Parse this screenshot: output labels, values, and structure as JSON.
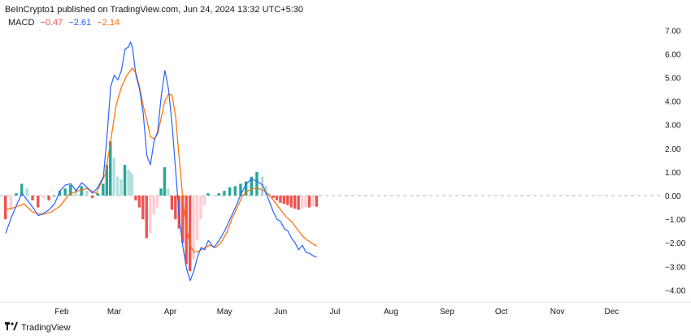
{
  "header": {
    "published_text": "BeInCrypto1 published on TradingView.com, Jun 24, 2024 13:32 UTC+5:30"
  },
  "legend": {
    "name": "MACD",
    "histogram_value": "−0.47",
    "macd_value": "−2.61",
    "signal_value": "−2.14"
  },
  "colors": {
    "macd_line": "#2962ff",
    "signal_line": "#ff6d00",
    "hist_pos_strong": "#26a69a",
    "hist_pos_weak": "#b2dfdb",
    "hist_neg_strong": "#ef5350",
    "hist_neg_weak": "#ffcdd2",
    "zero_line": "#b2b5be",
    "axis_text": "#131722"
  },
  "footer": {
    "brand": "TradingView",
    "logo_icon": "tradingview-logo-icon"
  },
  "chart_data": {
    "type": "line",
    "title": "",
    "xlabel": "",
    "ylabel": "",
    "ylim": [
      -4.25,
      7.6
    ],
    "grid": false,
    "legend_placement": "top-left",
    "x_tick_labels": [
      "Feb",
      "Mar",
      "Apr",
      "May",
      "Jun",
      "Jul",
      "Aug",
      "Sep",
      "Oct",
      "Nov",
      "Dec"
    ],
    "x_tick_positions_days": [
      31,
      60,
      91,
      121,
      152,
      182,
      213,
      244,
      274,
      305,
      335
    ],
    "y_ticks": [
      "7.00",
      "6.00",
      "5.00",
      "4.00",
      "3.00",
      "2.00",
      "1.00",
      "0.00",
      "−1.00",
      "−2.00",
      "−3.00",
      "−4.00"
    ],
    "y_tick_values": [
      7,
      6,
      5,
      4,
      3,
      2,
      1,
      0,
      -1,
      -2,
      -3,
      -4
    ],
    "series": [
      {
        "name": "MACD",
        "x": [
          0,
          3,
          6,
          9,
          12,
          15,
          18,
          21,
          24,
          27,
          30,
          33,
          36,
          39,
          42,
          45,
          48,
          51,
          54,
          56,
          58,
          60,
          62,
          64,
          66,
          68,
          69,
          70,
          72,
          74,
          76,
          78,
          80,
          82,
          84,
          86,
          88,
          90,
          92,
          94,
          96,
          98,
          100,
          102,
          104,
          106,
          108,
          110,
          112,
          115,
          118,
          121,
          124,
          127,
          130,
          133,
          136,
          139,
          142,
          144,
          146,
          148,
          150,
          152,
          154,
          156,
          158,
          160,
          162,
          164,
          166,
          168,
          170,
          172
        ],
        "values": [
          -1.6,
          -0.95,
          -0.4,
          0.1,
          -0.2,
          -0.5,
          -0.85,
          -0.75,
          -0.6,
          -0.35,
          0.2,
          0.45,
          0.5,
          0.2,
          0.55,
          0.35,
          0.1,
          0.35,
          0.8,
          2.5,
          4.6,
          5.1,
          4.9,
          5.3,
          6.2,
          6.3,
          6.5,
          6.3,
          5.1,
          4.5,
          3.5,
          1.7,
          1.3,
          2.3,
          2.7,
          4.2,
          5.3,
          4.5,
          3.0,
          1.0,
          -1.0,
          -2.2,
          -3.1,
          -3.6,
          -3.2,
          -2.6,
          -2.2,
          -2.3,
          -1.9,
          -2.2,
          -1.9,
          -1.5,
          -1.0,
          -0.5,
          0.05,
          0.5,
          0.7,
          0.6,
          0.45,
          0.1,
          -0.3,
          -0.7,
          -1.0,
          -1.1,
          -1.4,
          -1.5,
          -1.8,
          -2.0,
          -2.3,
          -2.1,
          -2.4,
          -2.45,
          -2.55,
          -2.61
        ]
      },
      {
        "name": "Signal",
        "x": [
          0,
          5,
          10,
          15,
          20,
          25,
          30,
          35,
          40,
          45,
          50,
          55,
          58,
          61,
          64,
          67,
          70,
          72,
          74,
          76,
          78,
          80,
          82,
          84,
          86,
          88,
          90,
          92,
          94,
          96,
          98,
          100,
          102,
          104,
          107,
          110,
          113,
          116,
          119,
          122,
          125,
          128,
          131,
          134,
          137,
          140,
          143,
          146,
          149,
          152,
          155,
          158,
          161,
          164,
          167,
          170,
          172
        ],
        "values": [
          -0.6,
          -0.5,
          -0.35,
          -0.7,
          -0.8,
          -0.7,
          -0.45,
          0.05,
          0.2,
          0.3,
          0.1,
          0.9,
          2.3,
          3.8,
          4.6,
          5.1,
          5.4,
          5.2,
          4.6,
          3.8,
          3.2,
          2.5,
          2.4,
          2.6,
          3.3,
          4.0,
          4.3,
          4.25,
          3.3,
          1.5,
          -0.2,
          -1.4,
          -2.1,
          -2.4,
          -2.35,
          -2.2,
          -2.1,
          -2.2,
          -2.0,
          -1.6,
          -1.0,
          -0.5,
          0.0,
          0.2,
          0.3,
          0.3,
          0.2,
          0.0,
          -0.3,
          -0.6,
          -0.9,
          -1.1,
          -1.4,
          -1.7,
          -1.9,
          -2.05,
          -2.14
        ]
      },
      {
        "name": "Histogram",
        "type": "bar",
        "x": [
          0,
          3,
          6,
          9,
          12,
          15,
          18,
          21,
          24,
          27,
          30,
          33,
          36,
          39,
          42,
          45,
          48,
          51,
          54,
          56,
          58,
          60,
          62,
          64,
          66,
          68,
          69,
          70,
          72,
          74,
          76,
          78,
          80,
          82,
          84,
          86,
          88,
          90,
          92,
          94,
          96,
          98,
          100,
          102,
          104,
          106,
          108,
          110,
          112,
          115,
          118,
          121,
          124,
          127,
          130,
          133,
          136,
          139,
          142,
          144,
          146,
          148,
          150,
          152,
          154,
          156,
          158,
          160,
          162,
          164,
          166,
          168,
          170,
          172
        ],
        "values": [
          -1.0,
          -0.6,
          0.1,
          0.5,
          0.3,
          -0.2,
          -0.5,
          -0.1,
          -0.2,
          0.0,
          0.2,
          0.3,
          0.45,
          0.3,
          0.4,
          0.2,
          -0.1,
          0.1,
          0.5,
          1.3,
          2.3,
          1.6,
          0.8,
          0.7,
          1.3,
          1.1,
          1.0,
          0.9,
          -0.2,
          -0.5,
          -1.0,
          -1.8,
          -1.6,
          -0.8,
          -0.5,
          0.3,
          1.2,
          0.3,
          -0.6,
          -1.0,
          -1.4,
          -2.0,
          -2.9,
          -3.2,
          -2.7,
          -1.9,
          -1.0,
          -0.4,
          0.1,
          0.0,
          0.1,
          0.2,
          0.35,
          0.4,
          0.5,
          0.6,
          0.8,
          1.0,
          0.8,
          0.4,
          0.1,
          -0.1,
          -0.2,
          -0.3,
          -0.35,
          -0.4,
          -0.5,
          -0.55,
          -0.6,
          -0.55,
          -0.5,
          -0.5,
          -0.45,
          -0.47
        ]
      }
    ]
  }
}
